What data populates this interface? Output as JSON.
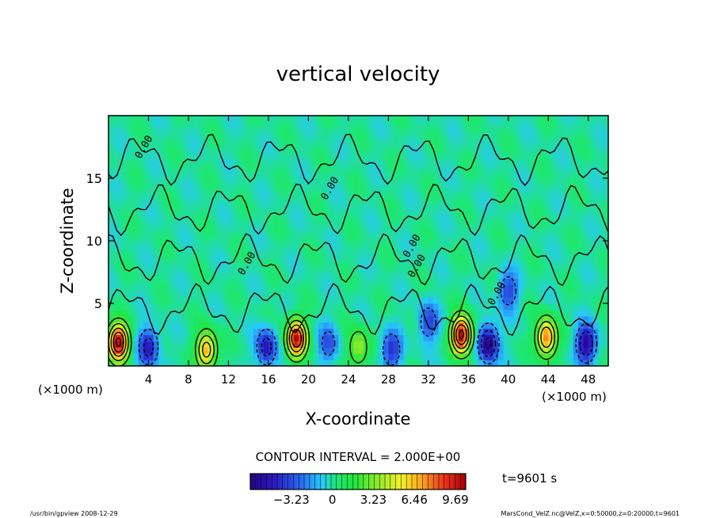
{
  "chart_data": {
    "type": "heatmap",
    "title": "vertical velocity",
    "xlabel": "X-coordinate",
    "ylabel": "Z-coordinate",
    "x_unit": "(×1000 m)",
    "xlim": [
      0,
      50
    ],
    "ylim": [
      0,
      20
    ],
    "x_ticks": [
      4,
      8,
      12,
      16,
      20,
      24,
      28,
      32,
      36,
      40,
      44,
      48
    ],
    "y_ticks": [
      5,
      10,
      15
    ],
    "contour_interval_label": "CONTOUR INTERVAL = 2.000E+00",
    "contour_label": "0.00",
    "time_label": "t=9601 s",
    "colorbar": {
      "ticks": [
        -3.23,
        0,
        3.23,
        6.46,
        9.69
      ],
      "tick_labels": [
        "−3.23",
        "0",
        "3.23",
        "6.46",
        "9.69"
      ],
      "range": [
        -6.46,
        10.5
      ]
    },
    "updrafts": [
      {
        "x": 1.0,
        "z": 1.9,
        "peak": 10.5
      },
      {
        "x": 9.8,
        "z": 1.3,
        "peak": 7.0
      },
      {
        "x": 18.8,
        "z": 2.2,
        "peak": 10.0
      },
      {
        "x": 25.0,
        "z": 1.5,
        "peak": 4.0
      },
      {
        "x": 35.3,
        "z": 2.5,
        "peak": 10.5
      },
      {
        "x": 43.8,
        "z": 2.3,
        "peak": 8.0
      }
    ],
    "downdrafts": [
      {
        "x": 4.0,
        "z": 1.5,
        "peak": -5.0
      },
      {
        "x": 15.8,
        "z": 1.5,
        "peak": -5.0
      },
      {
        "x": 22.0,
        "z": 1.8,
        "peak": -3.0
      },
      {
        "x": 28.3,
        "z": 1.3,
        "peak": -4.0
      },
      {
        "x": 32.0,
        "z": 3.5,
        "peak": -3.5
      },
      {
        "x": 38.0,
        "z": 1.8,
        "peak": -6.5
      },
      {
        "x": 40.0,
        "z": 6.0,
        "peak": -3.5
      },
      {
        "x": 47.8,
        "z": 1.8,
        "peak": -6.0
      }
    ]
  },
  "footer": {
    "left": "/usr/bin/gpview   2008-12-29",
    "right": "MarsCond_VelZ.nc@VelZ,x=0:50000,z=0:20000,t=9601"
  },
  "colors": {
    "background": "#ffffff",
    "neutral": "#19e34a",
    "frame": "#000000"
  }
}
